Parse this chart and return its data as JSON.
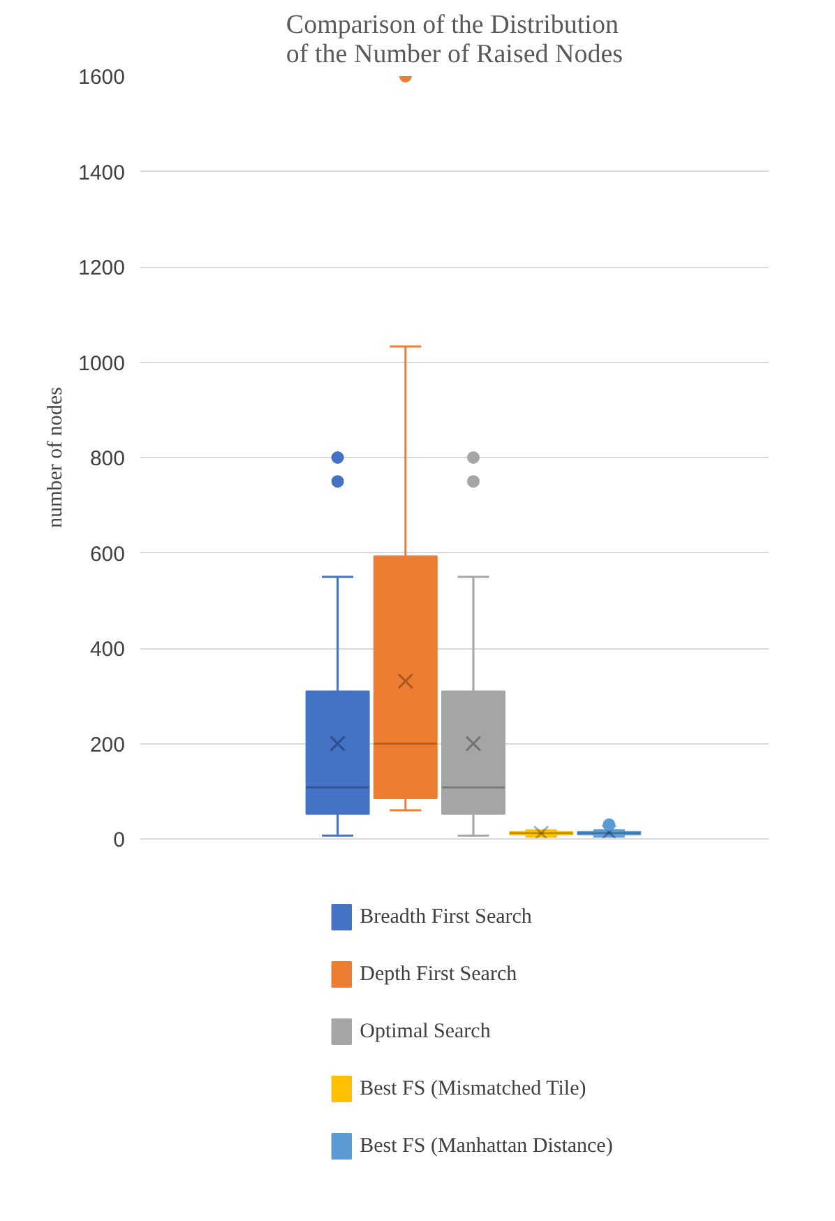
{
  "chart_data": {
    "type": "box",
    "title": "Comparison of the Distribution\nof the Number of Raised Nodes",
    "ylabel": "number of nodes",
    "categories": [
      null
    ],
    "ylim": [
      0,
      1600
    ],
    "yticks": [
      0,
      200,
      400,
      600,
      800,
      1000,
      1200,
      1400,
      1600
    ],
    "grid": "y",
    "legend": "bottom",
    "tick_labels": "y",
    "series": [
      {
        "name": "Breadth First Search",
        "color": "#4472c4",
        "boxes": [
          {
            "low": 7,
            "q1": 52,
            "median": 108,
            "q3": 310,
            "high": 550,
            "mean": 200,
            "outliers": [
              750,
              800
            ]
          }
        ]
      },
      {
        "name": "Depth First Search",
        "color": "#ed7d31",
        "boxes": [
          {
            "low": 60,
            "q1": 85,
            "median": 200,
            "q3": 593,
            "high": 1033,
            "mean": 331,
            "outliers": [
              1600
            ]
          }
        ]
      },
      {
        "name": "Optimal Search",
        "color": "#a5a5a5",
        "boxes": [
          {
            "low": 7,
            "q1": 52,
            "median": 108,
            "q3": 310,
            "high": 550,
            "mean": 200,
            "outliers": [
              750,
              800
            ]
          }
        ]
      },
      {
        "name": "Best FS (Mismatched Tile)",
        "color": "#ffc000",
        "boxes": [
          {
            "low": 5,
            "q1": 9,
            "median": 12,
            "q3": 15,
            "high": 18,
            "mean": 12
          }
        ]
      },
      {
        "name": "Best FS (Manhattan Distance)",
        "color": "#5b9bd5",
        "boxes": [
          {
            "low": 5,
            "q1": 9,
            "median": 12,
            "q3": 15,
            "high": 18,
            "mean": 14,
            "outliers": [
              30
            ]
          }
        ]
      }
    ]
  }
}
